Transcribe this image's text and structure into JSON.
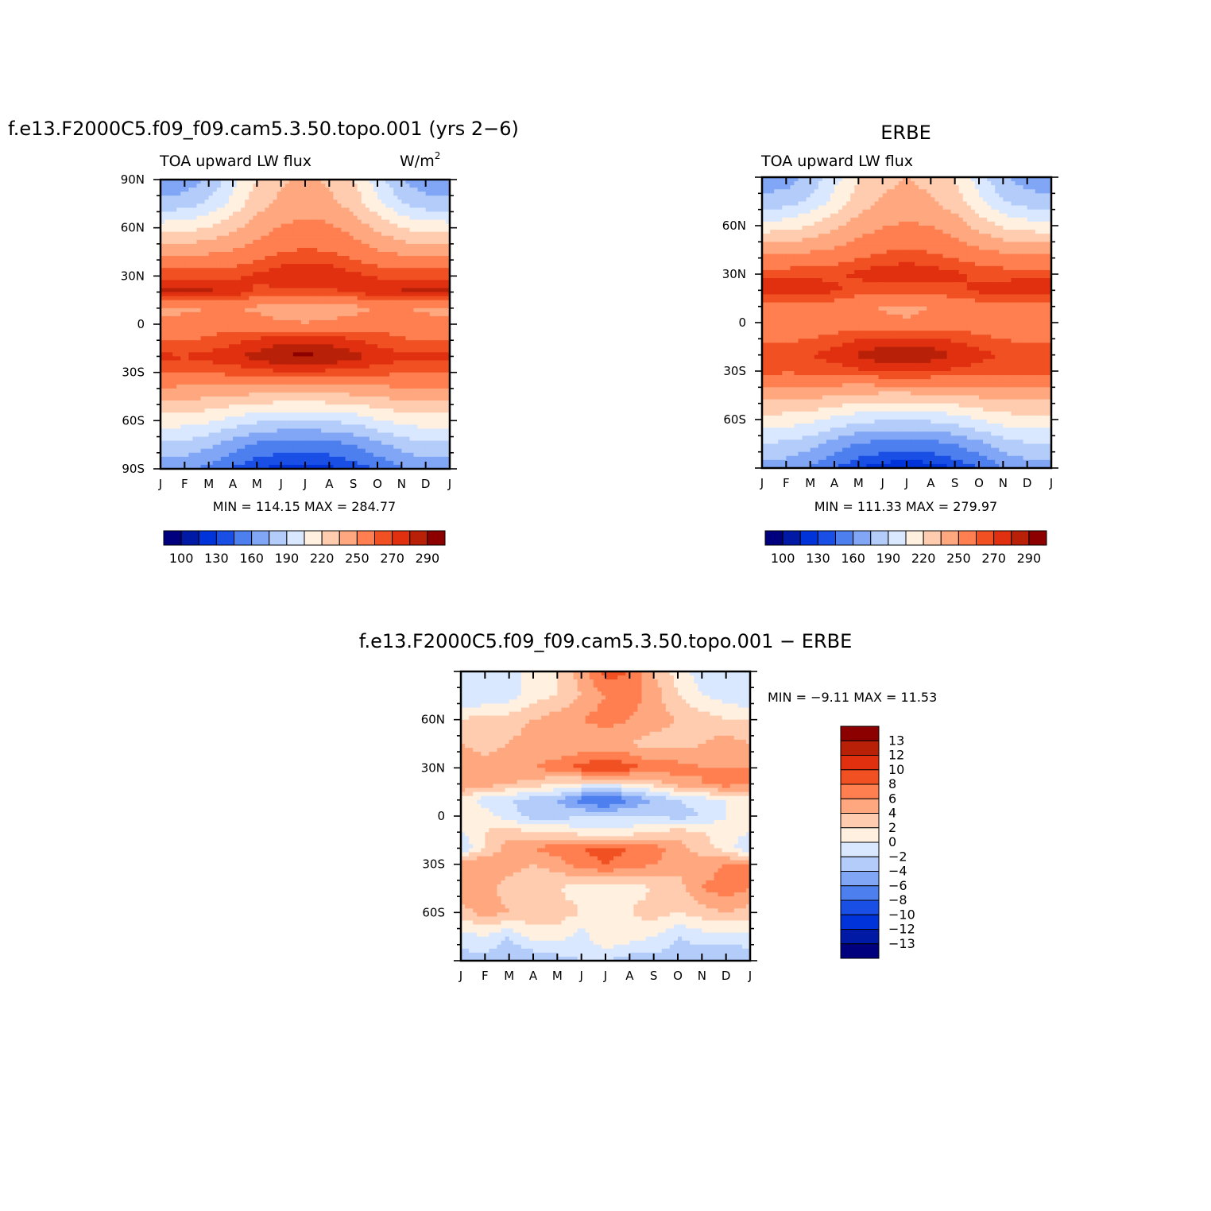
{
  "chart_data": [
    {
      "type": "heatmap",
      "id": "model",
      "title": "f.e13.F2000C5.f09_f09.cam5.3.50.topo.001 (yrs 2−6)",
      "subtitle_left": "TOA upward LW flux",
      "units": "W/m",
      "units_sup": "2",
      "x_ticks": [
        "J",
        "F",
        "M",
        "A",
        "M",
        "J",
        "J",
        "A",
        "S",
        "O",
        "N",
        "D",
        "J"
      ],
      "y_ticks": [
        "90N",
        "60N",
        "30N",
        "0",
        "30S",
        "60S",
        "90S"
      ],
      "stats": "MIN =  114.15  MAX =  284.77",
      "min": 114.15,
      "max": 284.77,
      "colorbar": {
        "colors": [
          "#00007f",
          "#001aa6",
          "#0033d9",
          "#1a4fe6",
          "#4d7fef",
          "#80a6f5",
          "#b3ccfa",
          "#d9e8ff",
          "#fff0e0",
          "#ffccb0",
          "#ffa880",
          "#ff7f50",
          "#f05022",
          "#e03010",
          "#b82008",
          "#8c0000"
        ],
        "labels": [
          "100",
          "130",
          "160",
          "190",
          "220",
          "250",
          "270",
          "290"
        ]
      },
      "field": {
        "lat": [
          -90,
          -75,
          -60,
          -45,
          -30,
          -20,
          -10,
          0,
          10,
          20,
          30,
          45,
          60,
          75,
          90
        ],
        "month": [
          0,
          1,
          2,
          3,
          4,
          5,
          6,
          7,
          8,
          9,
          10,
          11,
          12
        ],
        "values": [
          [
            150,
            148,
            140,
            128,
            120,
            116,
            115,
            117,
            122,
            132,
            144,
            150,
            150
          ],
          [
            172,
            170,
            164,
            152,
            142,
            138,
            137,
            139,
            145,
            156,
            166,
            172,
            172
          ],
          [
            198,
            196,
            192,
            184,
            178,
            175,
            174,
            176,
            180,
            188,
            195,
            198,
            198
          ],
          [
            224,
            223,
            222,
            219,
            216,
            214,
            214,
            215,
            217,
            221,
            224,
            224,
            224
          ],
          [
            252,
            251,
            252,
            253,
            256,
            258,
            258,
            257,
            256,
            253,
            252,
            252,
            252
          ],
          [
            262,
            261,
            264,
            268,
            274,
            281,
            283,
            280,
            274,
            268,
            263,
            262,
            262
          ],
          [
            250,
            249,
            252,
            256,
            262,
            266,
            268,
            266,
            261,
            255,
            251,
            250,
            250
          ],
          [
            240,
            241,
            244,
            245,
            242,
            238,
            236,
            238,
            242,
            245,
            244,
            241,
            240
          ],
          [
            230,
            232,
            235,
            236,
            232,
            226,
            224,
            226,
            230,
            235,
            236,
            232,
            230
          ],
          [
            272,
            274,
            273,
            266,
            258,
            256,
            257,
            258,
            261,
            266,
            272,
            273,
            272
          ],
          [
            258,
            258,
            258,
            258,
            262,
            268,
            270,
            268,
            263,
            259,
            258,
            258,
            258
          ],
          [
            230,
            231,
            233,
            237,
            243,
            249,
            252,
            250,
            244,
            237,
            232,
            230,
            230
          ],
          [
            198,
            200,
            206,
            216,
            228,
            236,
            240,
            238,
            230,
            217,
            205,
            199,
            198
          ],
          [
            165,
            168,
            178,
            195,
            214,
            224,
            226,
            224,
            214,
            194,
            176,
            167,
            165
          ],
          [
            148,
            150,
            162,
            184,
            206,
            218,
            222,
            218,
            206,
            182,
            160,
            150,
            148
          ]
        ]
      }
    },
    {
      "type": "heatmap",
      "id": "obs",
      "title": "ERBE",
      "subtitle_left": "TOA upward LW flux",
      "x_ticks": [
        "J",
        "F",
        "M",
        "A",
        "M",
        "J",
        "J",
        "A",
        "S",
        "O",
        "N",
        "D",
        "J"
      ],
      "y_ticks": [
        "60N",
        "30N",
        "0",
        "30S",
        "60S"
      ],
      "stats": "MIN =  111.33  MAX =  279.97",
      "min": 111.33,
      "max": 279.97,
      "colorbar": {
        "colors": [
          "#00007f",
          "#001aa6",
          "#0033d9",
          "#1a4fe6",
          "#4d7fef",
          "#80a6f5",
          "#b3ccfa",
          "#d9e8ff",
          "#fff0e0",
          "#ffccb0",
          "#ffa880",
          "#ff7f50",
          "#f05022",
          "#e03010",
          "#b82008",
          "#8c0000"
        ],
        "labels": [
          "100",
          "130",
          "160",
          "190",
          "220",
          "250",
          "270",
          "290"
        ]
      },
      "field": {
        "lat": [
          -90,
          -75,
          -60,
          -45,
          -30,
          -20,
          -10,
          0,
          10,
          20,
          30,
          45,
          60,
          75,
          90
        ],
        "month": [
          0,
          1,
          2,
          3,
          4,
          5,
          6,
          7,
          8,
          9,
          10,
          11,
          12
        ],
        "values": [
          [
            155,
            152,
            144,
            130,
            120,
            114,
            112,
            114,
            120,
            130,
            145,
            152,
            155
          ],
          [
            175,
            172,
            166,
            154,
            144,
            140,
            138,
            140,
            146,
            156,
            168,
            174,
            175
          ],
          [
            200,
            198,
            194,
            186,
            180,
            177,
            176,
            178,
            182,
            190,
            197,
            200,
            200
          ],
          [
            226,
            225,
            224,
            221,
            218,
            216,
            216,
            217,
            219,
            223,
            226,
            226,
            226
          ],
          [
            254,
            252,
            253,
            255,
            258,
            262,
            263,
            261,
            258,
            255,
            253,
            254,
            254
          ],
          [
            258,
            257,
            260,
            265,
            272,
            277,
            278,
            276,
            270,
            264,
            259,
            258,
            258
          ],
          [
            248,
            247,
            250,
            254,
            259,
            262,
            263,
            262,
            258,
            253,
            249,
            248,
            248
          ],
          [
            236,
            237,
            240,
            242,
            240,
            237,
            236,
            237,
            240,
            243,
            241,
            238,
            236
          ],
          [
            240,
            242,
            244,
            243,
            238,
            234,
            233,
            235,
            239,
            244,
            244,
            242,
            240
          ],
          [
            268,
            267,
            266,
            262,
            256,
            254,
            254,
            255,
            258,
            262,
            266,
            268,
            268
          ],
          [
            256,
            256,
            257,
            258,
            262,
            267,
            268,
            266,
            262,
            258,
            256,
            256,
            256
          ],
          [
            230,
            231,
            233,
            237,
            243,
            248,
            250,
            248,
            243,
            237,
            232,
            230,
            230
          ],
          [
            196,
            198,
            205,
            216,
            227,
            234,
            237,
            235,
            228,
            215,
            203,
            197,
            196
          ],
          [
            165,
            168,
            178,
            195,
            212,
            222,
            224,
            222,
            212,
            193,
            176,
            167,
            165
          ],
          [
            150,
            152,
            164,
            184,
            204,
            216,
            220,
            216,
            204,
            182,
            162,
            152,
            150
          ]
        ]
      }
    },
    {
      "type": "heatmap",
      "id": "diff",
      "title": "f.e13.F2000C5.f09_f09.cam5.3.50.topo.001 − ERBE",
      "x_ticks": [
        "J",
        "F",
        "M",
        "A",
        "M",
        "J",
        "J",
        "A",
        "S",
        "O",
        "N",
        "D",
        "J"
      ],
      "y_ticks": [
        "60N",
        "30N",
        "0",
        "30S",
        "60S"
      ],
      "stats": "MIN =   −9.11  MAX =   11.53",
      "min": -9.11,
      "max": 11.53,
      "colorbar": {
        "colors": [
          "#8c0000",
          "#b82008",
          "#e03010",
          "#f05022",
          "#ff7f50",
          "#ffa880",
          "#ffccb0",
          "#fff0e0",
          "#d9e8ff",
          "#b3ccfa",
          "#80a6f5",
          "#4d7fef",
          "#1a4fe6",
          "#0033d9",
          "#001aa6",
          "#00007f"
        ],
        "labels": [
          "13",
          "12",
          "10",
          "8",
          "6",
          "4",
          "2",
          "0",
          "−2",
          "−4",
          "−6",
          "−8",
          "−10",
          "−12",
          "−13"
        ]
      },
      "field": {
        "lat": [
          -90,
          -75,
          -60,
          -45,
          -30,
          -20,
          -10,
          0,
          10,
          20,
          30,
          45,
          60,
          75,
          90
        ],
        "month": [
          0,
          1,
          2,
          3,
          4,
          5,
          6,
          7,
          8,
          9,
          10,
          11,
          12
        ],
        "values": [
          [
            -3,
            -3,
            -4,
            -4,
            -3,
            -2,
            -2,
            -3,
            -3,
            -3,
            -4,
            -4,
            -3
          ],
          [
            -1,
            0,
            -2,
            1,
            1,
            -1,
            2,
            1,
            0,
            -2,
            -1,
            -1,
            -1
          ],
          [
            3,
            5,
            4,
            3,
            3,
            2,
            2,
            2,
            3,
            2,
            3,
            4,
            3
          ],
          [
            6,
            5,
            3,
            2,
            2,
            1,
            1,
            1,
            2,
            3,
            6,
            7,
            6
          ],
          [
            6,
            6,
            5,
            4,
            5,
            7,
            8,
            7,
            6,
            5,
            5,
            6,
            6
          ],
          [
            -2,
            2,
            5,
            6,
            7,
            8,
            9,
            8,
            7,
            5,
            3,
            1,
            -2
          ],
          [
            0,
            2,
            3,
            2,
            2,
            1,
            1,
            1,
            2,
            3,
            2,
            1,
            0
          ],
          [
            2,
            1,
            -1,
            -3,
            -3,
            -2,
            -2,
            -2,
            -2,
            -3,
            -2,
            0,
            2
          ],
          [
            1,
            -1,
            -2,
            -3,
            -4,
            -7,
            -9,
            -6,
            -4,
            -2,
            -1,
            0,
            1
          ],
          [
            6,
            5,
            4,
            3,
            2,
            1,
            1,
            1,
            3,
            5,
            6,
            7,
            6
          ],
          [
            6,
            5,
            6,
            6,
            7,
            9,
            10,
            9,
            7,
            7,
            6,
            6,
            6
          ],
          [
            4,
            3,
            4,
            5,
            4,
            4,
            4,
            4,
            3,
            3,
            4,
            5,
            4
          ],
          [
            2,
            3,
            3,
            4,
            5,
            6,
            7,
            6,
            5,
            4,
            3,
            2,
            2
          ],
          [
            -2,
            -2,
            -1,
            1,
            2,
            4,
            6,
            7,
            5,
            2,
            0,
            -1,
            -2
          ],
          [
            -2,
            -2,
            -1,
            1,
            2,
            5,
            9,
            8,
            4,
            1,
            -1,
            -2,
            -2
          ]
        ]
      }
    }
  ]
}
